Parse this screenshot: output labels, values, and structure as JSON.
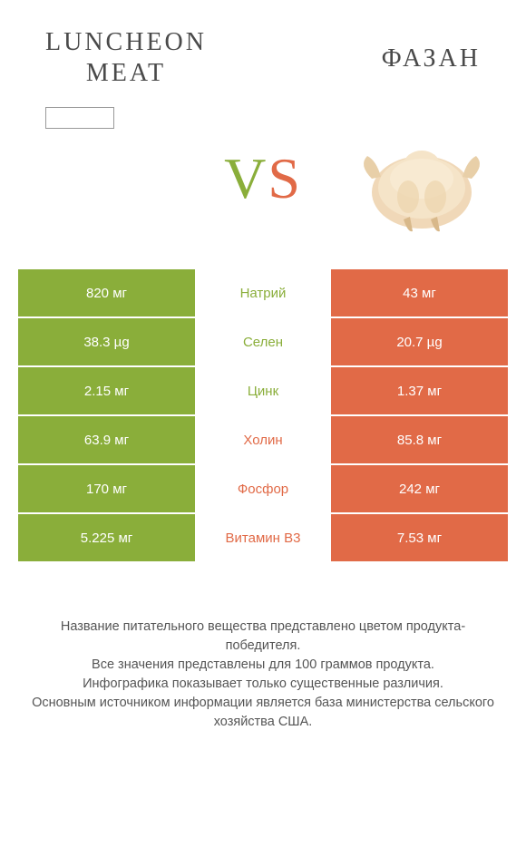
{
  "header": {
    "left_title": "LUNCHEON\nMEAT",
    "right_title": "ФАЗАН"
  },
  "vs_label": "VS",
  "colors": {
    "left": "#8aae3a",
    "right": "#e16a47",
    "label_left_win": "#8aae3a",
    "label_right_win": "#e16a47",
    "background": "#ffffff",
    "text_dark": "#4a4a4a",
    "footer_text": "#555555"
  },
  "typography": {
    "title_fontsize": 28,
    "title_letter_spacing": 3,
    "vs_fontsize": 64,
    "cell_fontsize": 15,
    "footer_fontsize": 14.5
  },
  "table": {
    "rows": [
      {
        "left": "820 мг",
        "label": "Натрий",
        "right": "43 мг",
        "winner": "left"
      },
      {
        "left": "38.3 µg",
        "label": "Селен",
        "right": "20.7 µg",
        "winner": "left"
      },
      {
        "left": "2.15 мг",
        "label": "Цинк",
        "right": "1.37 мг",
        "winner": "left"
      },
      {
        "left": "63.9 мг",
        "label": "Холин",
        "right": "85.8 мг",
        "winner": "right"
      },
      {
        "left": "170 мг",
        "label": "Фосфор",
        "right": "242 мг",
        "winner": "right"
      },
      {
        "left": "5.225 мг",
        "label": "Витамин B3",
        "right": "7.53 мг",
        "winner": "right"
      }
    ]
  },
  "footer_lines": [
    "Название питательного вещества представлено цветом продукта-победителя.",
    "Все значения представлены для 100 граммов продукта.",
    "Инфографика показывает только существенные различия.",
    "Основным источником информации является база министерства сельского хозяйства США."
  ]
}
